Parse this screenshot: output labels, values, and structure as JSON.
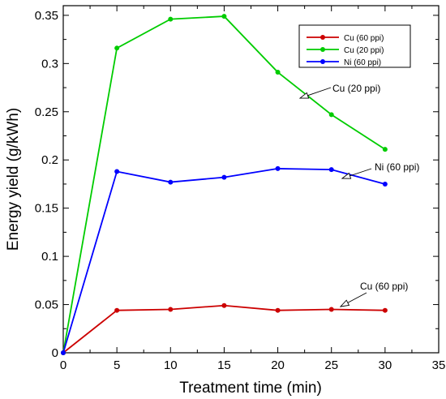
{
  "chart_data": {
    "type": "line",
    "title": "",
    "xlabel": "Treatment time (min)",
    "ylabel": "Energy yield (g/kWh)",
    "xlim": [
      0,
      35
    ],
    "ylim": [
      0,
      0.36
    ],
    "xticks": [
      0,
      5,
      10,
      15,
      20,
      25,
      30,
      35
    ],
    "yticks": [
      0,
      0.05,
      0.1,
      0.15,
      0.2,
      0.25,
      0.3,
      0.35
    ],
    "ytick_labels": [
      "0",
      "0.05",
      "0.1",
      "0.15",
      "0.2",
      "0.25",
      "0.3",
      "0.35"
    ],
    "grid": false,
    "legend_position": "top-right",
    "x": [
      0,
      5,
      10,
      15,
      20,
      25,
      30
    ],
    "series": [
      {
        "name": "Cu (60 ppi)",
        "color": "#cc0000",
        "values": [
          0,
          0.044,
          0.045,
          0.049,
          0.044,
          0.045,
          0.044
        ]
      },
      {
        "name": "Cu (20 ppi)",
        "color": "#00cc00",
        "values": [
          0,
          0.316,
          0.346,
          0.349,
          0.291,
          0.247,
          0.211
        ]
      },
      {
        "name": "Ni (60 ppi)",
        "color": "#0000ff",
        "values": [
          0,
          0.188,
          0.177,
          0.182,
          0.191,
          0.19,
          0.175
        ]
      }
    ],
    "annotations": [
      {
        "text": "Cu (20 ppi)",
        "series": "Cu (20 ppi)"
      },
      {
        "text": "Ni (60 ppi)",
        "series": "Ni (60 ppi)"
      },
      {
        "text": "Cu (60 ppi)",
        "series": "Cu (60 ppi)"
      }
    ]
  }
}
